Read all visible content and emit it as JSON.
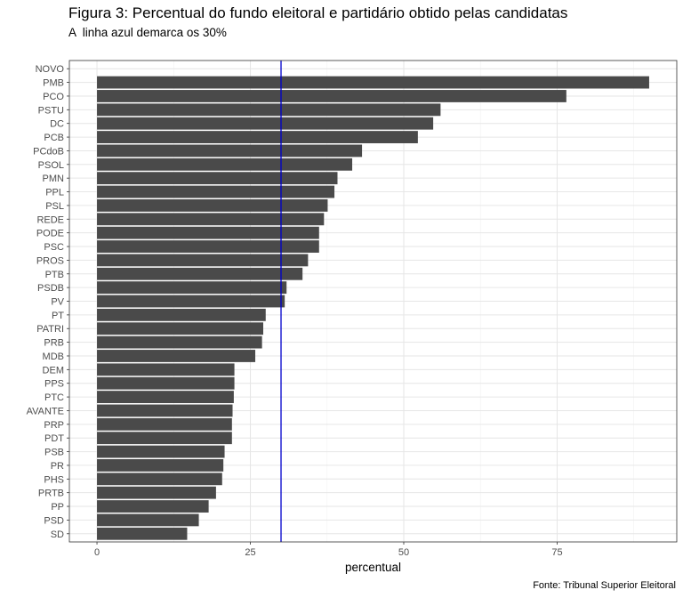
{
  "chart_data": {
    "type": "bar",
    "orientation": "horizontal",
    "title": "Figura 3: Percentual do fundo eleitoral e partidário obtido pelas candidatas",
    "subtitle": "A  linha azul demarca os 30%",
    "caption": "Fonte: Tribunal Superior Eleitoral",
    "xlabel": "percentual",
    "ylabel": "",
    "xlim": [
      -4.5,
      94.5
    ],
    "xticks": [
      0,
      25,
      50,
      75
    ],
    "grid": true,
    "reference_line": {
      "value": 30,
      "color": "#0000cc"
    },
    "bar_color": "#4a4a4a",
    "categories": [
      "NOVO",
      "PMB",
      "PCO",
      "PSTU",
      "DC",
      "PCB",
      "PCdoB",
      "PSOL",
      "PMN",
      "PPL",
      "PSL",
      "REDE",
      "PODE",
      "PSC",
      "PROS",
      "PTB",
      "PSDB",
      "PV",
      "PT",
      "PATRI",
      "PRB",
      "MDB",
      "DEM",
      "PPS",
      "PTC",
      "AVANTE",
      "PRP",
      "PDT",
      "PSB",
      "PR",
      "PHS",
      "PRTB",
      "PP",
      "PSD",
      "SD"
    ],
    "values": [
      0,
      90,
      76.5,
      56,
      54.8,
      52.3,
      43.2,
      41.6,
      39.2,
      38.7,
      37.6,
      37,
      36.2,
      36.2,
      34.4,
      33.5,
      30.9,
      30.6,
      27.5,
      27.1,
      26.9,
      25.8,
      22.4,
      22.4,
      22.3,
      22.1,
      22,
      22,
      20.8,
      20.6,
      20.4,
      19.4,
      18.2,
      16.6,
      14.7
    ]
  }
}
